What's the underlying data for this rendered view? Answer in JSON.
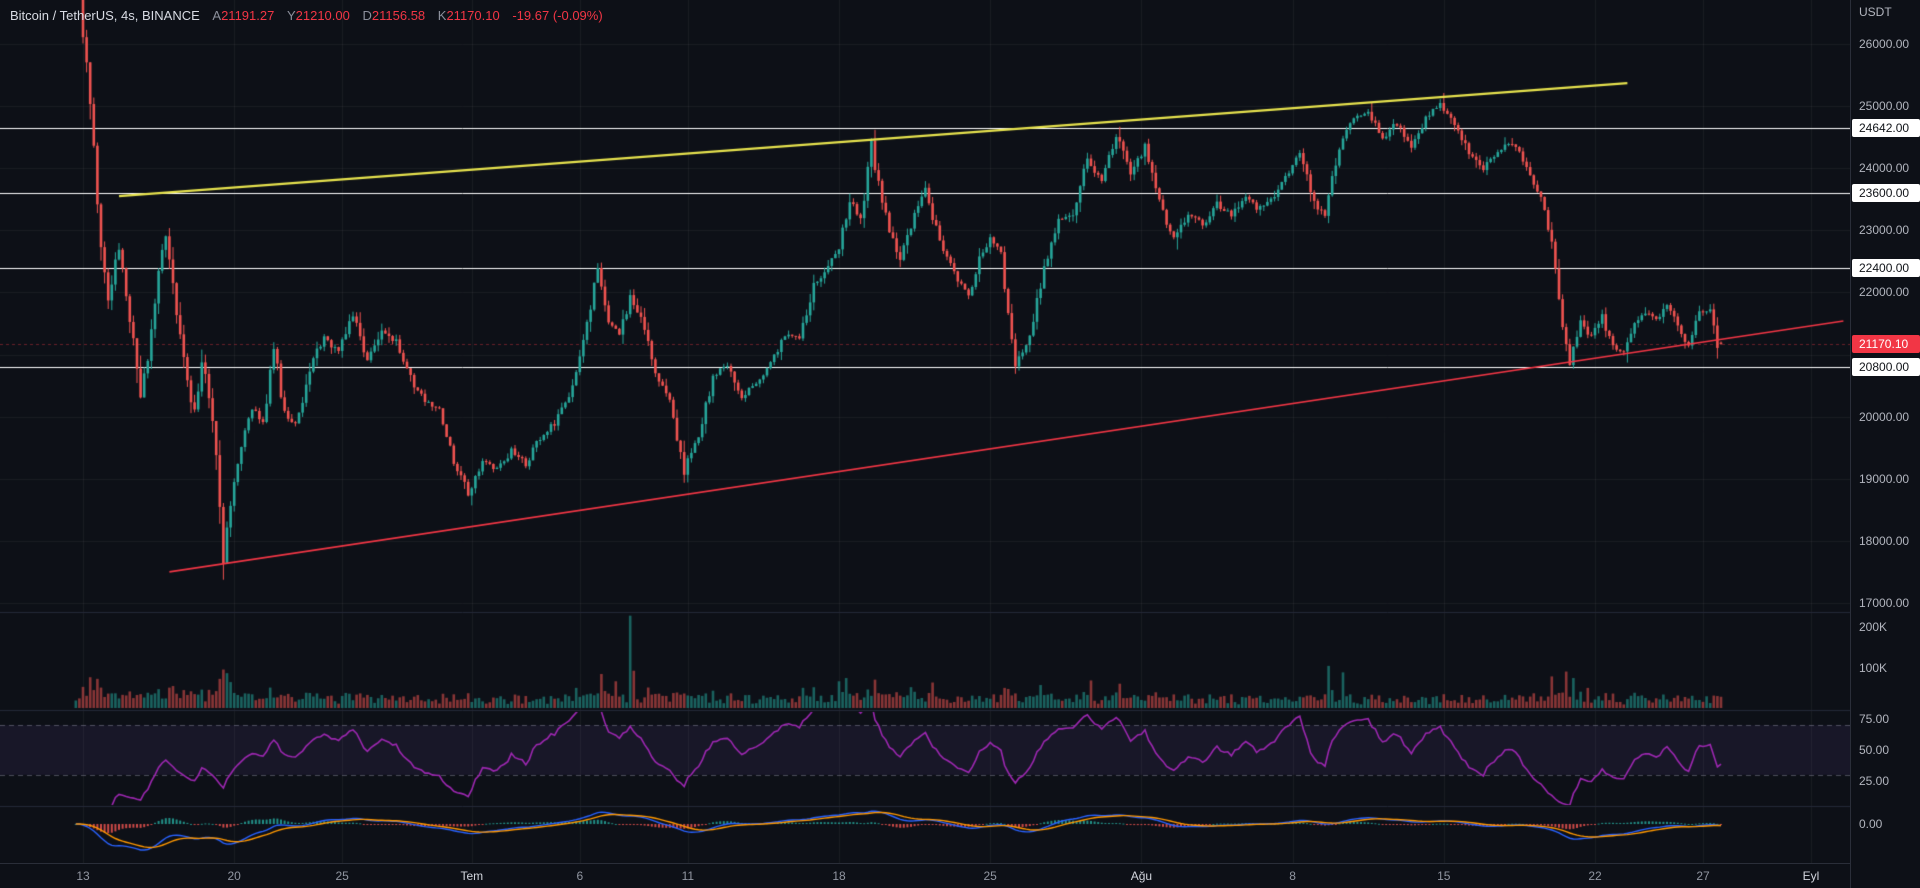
{
  "legend": {
    "symbol": "Bitcoin / TetherUS, 4s, BINANCE",
    "ohlc": [
      {
        "label": "A",
        "value": "21191.27"
      },
      {
        "label": "Y",
        "value": "21210.00"
      },
      {
        "label": "D",
        "value": "21156.58"
      },
      {
        "label": "K",
        "value": "21170.10"
      }
    ],
    "change": "-19.67 (-0.09%)"
  },
  "price_axis": {
    "unit": "USDT",
    "price_labels": [
      {
        "text": "26000.00",
        "value": 26000
      },
      {
        "text": "25000.00",
        "value": 25000
      },
      {
        "text": "24000.00",
        "value": 24000
      },
      {
        "text": "23000.00",
        "value": 23000
      },
      {
        "text": "22000.00",
        "value": 22000
      },
      {
        "text": "20000.00",
        "value": 20000
      },
      {
        "text": "19000.00",
        "value": 19000
      },
      {
        "text": "18000.00",
        "value": 18000
      },
      {
        "text": "17000.00",
        "value": 17000
      }
    ],
    "volume_labels": [
      {
        "text": "200K",
        "value": 200000
      },
      {
        "text": "100K",
        "value": 100000
      }
    ],
    "rsi_labels": [
      {
        "text": "75.00",
        "value": 75
      },
      {
        "text": "50.00",
        "value": 50
      },
      {
        "text": "25.00",
        "value": 25
      }
    ],
    "macd_labels": [
      {
        "text": "0.00",
        "value": 0
      }
    ],
    "tags": [
      {
        "text": "24642.00",
        "value": 24642,
        "style": "line"
      },
      {
        "text": "23600.00",
        "value": 23600,
        "style": "line"
      },
      {
        "text": "22400.00",
        "value": 22400,
        "style": "line"
      },
      {
        "text": "20800.00",
        "value": 20800,
        "style": "line"
      },
      {
        "text": "21170.10",
        "value": 21170.1,
        "style": "last"
      }
    ]
  },
  "time_axis": {
    "labels": [
      {
        "text": "13",
        "index": 2,
        "month": false
      },
      {
        "text": "20",
        "index": 44,
        "month": false
      },
      {
        "text": "25",
        "index": 74,
        "month": false
      },
      {
        "text": "Tem",
        "index": 110,
        "month": true
      },
      {
        "text": "6",
        "index": 140,
        "month": false
      },
      {
        "text": "11",
        "index": 170,
        "month": false
      },
      {
        "text": "18",
        "index": 212,
        "month": false
      },
      {
        "text": "25",
        "index": 254,
        "month": false
      },
      {
        "text": "Ağu",
        "index": 296,
        "month": true
      },
      {
        "text": "8",
        "index": 338,
        "month": false
      },
      {
        "text": "15",
        "index": 380,
        "month": false
      },
      {
        "text": "22",
        "index": 422,
        "month": false
      },
      {
        "text": "27",
        "index": 452,
        "month": false
      },
      {
        "text": "Eyl",
        "index": 482,
        "month": true
      }
    ]
  },
  "colors": {
    "background": "#0d1017",
    "up": "#26a69a",
    "down": "#ef5350",
    "grid": "rgba(255,255,255,0.05)",
    "divider": "#232837",
    "axis_text": "#b2b5be",
    "white_line": "#ffffff",
    "last_price": "#f23645",
    "trend_yellow": "#e7e34e",
    "trend_red": "#f23645",
    "rsi": "#9c27b0",
    "rsi_band_fill": "rgba(126,87,194,0.10)",
    "rsi_band_line": "rgba(150,150,170,0.45)",
    "macd_line": "#2962ff",
    "macd_signal": "#ff9800",
    "volume_up": "rgba(38,166,154,0.55)",
    "volume_down": "rgba(239,83,80,0.55)"
  },
  "chart_data": {
    "type": "candlestick",
    "title": "Bitcoin / TetherUS, 4s, BINANCE",
    "unit": "USDT",
    "interval_label": "4s",
    "candle_count": 458,
    "last_candle": {
      "open": 21191.27,
      "high": 21210.0,
      "low": 21156.58,
      "close": 21170.1,
      "change": -19.67,
      "change_pct": -0.09
    },
    "price_axis_ticks": [
      26000,
      25000,
      24000,
      23000,
      22000,
      21000,
      20000,
      19000,
      18000,
      17000
    ],
    "y_range_price": [
      16850,
      26710
    ],
    "horizontal_lines": [
      24642,
      23600,
      22400,
      20800
    ],
    "trendlines": [
      {
        "name": "descending-resistance",
        "color": "#e7e34e",
        "width": 2.4,
        "from": {
          "index": 12,
          "price": 23550
        },
        "to": {
          "index": 431,
          "price": 25370
        }
      },
      {
        "name": "ascending-support",
        "color": "#f23645",
        "width": 1.6,
        "from": {
          "index": 26,
          "price": 17500
        },
        "to": {
          "index": 491,
          "price": 21540
        }
      }
    ],
    "price_waypoints": [
      [
        0,
        26800
      ],
      [
        2,
        26850
      ],
      [
        4,
        25600
      ],
      [
        6,
        24200
      ],
      [
        8,
        22700
      ],
      [
        10,
        21950
      ],
      [
        13,
        22700
      ],
      [
        16,
        21600
      ],
      [
        19,
        20350
      ],
      [
        21,
        20900
      ],
      [
        24,
        22300
      ],
      [
        26,
        23000
      ],
      [
        29,
        21600
      ],
      [
        32,
        20500
      ],
      [
        34,
        20050
      ],
      [
        36,
        20850
      ],
      [
        38,
        20350
      ],
      [
        40,
        19300
      ],
      [
        42,
        17750
      ],
      [
        44,
        18600
      ],
      [
        47,
        19500
      ],
      [
        50,
        20150
      ],
      [
        53,
        19900
      ],
      [
        56,
        21150
      ],
      [
        59,
        20050
      ],
      [
        62,
        19850
      ],
      [
        66,
        20750
      ],
      [
        70,
        21300
      ],
      [
        74,
        21050
      ],
      [
        78,
        21650
      ],
      [
        82,
        20900
      ],
      [
        86,
        21350
      ],
      [
        90,
        21200
      ],
      [
        94,
        20600
      ],
      [
        98,
        20250
      ],
      [
        102,
        20100
      ],
      [
        106,
        19300
      ],
      [
        110,
        18750
      ],
      [
        114,
        19300
      ],
      [
        118,
        19150
      ],
      [
        122,
        19450
      ],
      [
        126,
        19250
      ],
      [
        130,
        19650
      ],
      [
        134,
        19900
      ],
      [
        138,
        20300
      ],
      [
        142,
        21200
      ],
      [
        146,
        22400
      ],
      [
        149,
        21500
      ],
      [
        152,
        21350
      ],
      [
        155,
        21900
      ],
      [
        158,
        21600
      ],
      [
        162,
        20700
      ],
      [
        166,
        20250
      ],
      [
        170,
        19150
      ],
      [
        174,
        19700
      ],
      [
        178,
        20650
      ],
      [
        182,
        20800
      ],
      [
        186,
        20300
      ],
      [
        190,
        20550
      ],
      [
        194,
        20850
      ],
      [
        198,
        21300
      ],
      [
        202,
        21300
      ],
      [
        206,
        22100
      ],
      [
        210,
        22450
      ],
      [
        213,
        22700
      ],
      [
        216,
        23450
      ],
      [
        219,
        23200
      ],
      [
        222,
        24350
      ],
      [
        226,
        23200
      ],
      [
        230,
        22550
      ],
      [
        234,
        23200
      ],
      [
        237,
        23650
      ],
      [
        241,
        22850
      ],
      [
        245,
        22300
      ],
      [
        249,
        21950
      ],
      [
        252,
        22500
      ],
      [
        255,
        22900
      ],
      [
        258,
        22600
      ],
      [
        262,
        20850
      ],
      [
        266,
        21300
      ],
      [
        270,
        22400
      ],
      [
        274,
        23150
      ],
      [
        278,
        23300
      ],
      [
        282,
        24150
      ],
      [
        286,
        23800
      ],
      [
        290,
        24550
      ],
      [
        294,
        23900
      ],
      [
        298,
        24350
      ],
      [
        302,
        23500
      ],
      [
        306,
        22850
      ],
      [
        310,
        23250
      ],
      [
        314,
        23100
      ],
      [
        318,
        23400
      ],
      [
        322,
        23250
      ],
      [
        326,
        23500
      ],
      [
        330,
        23350
      ],
      [
        334,
        23600
      ],
      [
        338,
        23900
      ],
      [
        341,
        24250
      ],
      [
        345,
        23400
      ],
      [
        348,
        23250
      ],
      [
        352,
        24350
      ],
      [
        356,
        24800
      ],
      [
        360,
        24900
      ],
      [
        364,
        24500
      ],
      [
        368,
        24700
      ],
      [
        372,
        24350
      ],
      [
        376,
        24800
      ],
      [
        380,
        25050
      ],
      [
        384,
        24700
      ],
      [
        388,
        24250
      ],
      [
        392,
        23950
      ],
      [
        396,
        24300
      ],
      [
        400,
        24420
      ],
      [
        404,
        24050
      ],
      [
        408,
        23500
      ],
      [
        411,
        22800
      ],
      [
        414,
        21500
      ],
      [
        416,
        20900
      ],
      [
        419,
        21550
      ],
      [
        422,
        21300
      ],
      [
        425,
        21600
      ],
      [
        428,
        21150
      ],
      [
        431,
        21000
      ],
      [
        434,
        21500
      ],
      [
        437,
        21700
      ],
      [
        440,
        21550
      ],
      [
        443,
        21800
      ],
      [
        446,
        21450
      ],
      [
        449,
        21150
      ],
      [
        452,
        21650
      ],
      [
        455,
        21750
      ],
      [
        457,
        21170
      ]
    ],
    "wick_overrides": [
      {
        "index": 42,
        "low": 17630
      },
      {
        "index": 110,
        "low": 18570
      },
      {
        "index": 146,
        "high": 22480
      },
      {
        "index": 170,
        "low": 18940
      },
      {
        "index": 222,
        "high": 24420
      },
      {
        "index": 262,
        "low": 20740
      },
      {
        "index": 290,
        "high": 24668
      },
      {
        "index": 306,
        "low": 22690
      },
      {
        "index": 360,
        "high": 25060
      },
      {
        "index": 380,
        "high": 25211
      },
      {
        "index": 416,
        "low": 20778
      },
      {
        "index": 431,
        "low": 20870
      }
    ],
    "volume": {
      "axis_ticks": [
        200000,
        100000
      ],
      "spikes": [
        {
          "index": 40,
          "value": 72
        },
        {
          "index": 41,
          "value": 95
        },
        {
          "index": 42,
          "value": 86
        },
        {
          "index": 43,
          "value": 64
        },
        {
          "index": 146,
          "value": 84
        },
        {
          "index": 150,
          "value": 66
        },
        {
          "index": 154,
          "value": 228
        },
        {
          "index": 155,
          "value": 92
        },
        {
          "index": 212,
          "value": 66
        },
        {
          "index": 214,
          "value": 74
        },
        {
          "index": 222,
          "value": 70
        },
        {
          "index": 282,
          "value": 68
        },
        {
          "index": 290,
          "value": 60
        },
        {
          "index": 348,
          "value": 104
        },
        {
          "index": 352,
          "value": 88
        },
        {
          "index": 410,
          "value": 78
        },
        {
          "index": 414,
          "value": 90
        },
        {
          "index": 416,
          "value": 74
        }
      ]
    },
    "rsi": {
      "period": 14,
      "bands": [
        70,
        30
      ],
      "axis_ticks": [
        75,
        50,
        25
      ]
    },
    "macd": {
      "fast": 12,
      "slow": 26,
      "signal": 9,
      "axis_ticks": [
        0
      ]
    }
  }
}
